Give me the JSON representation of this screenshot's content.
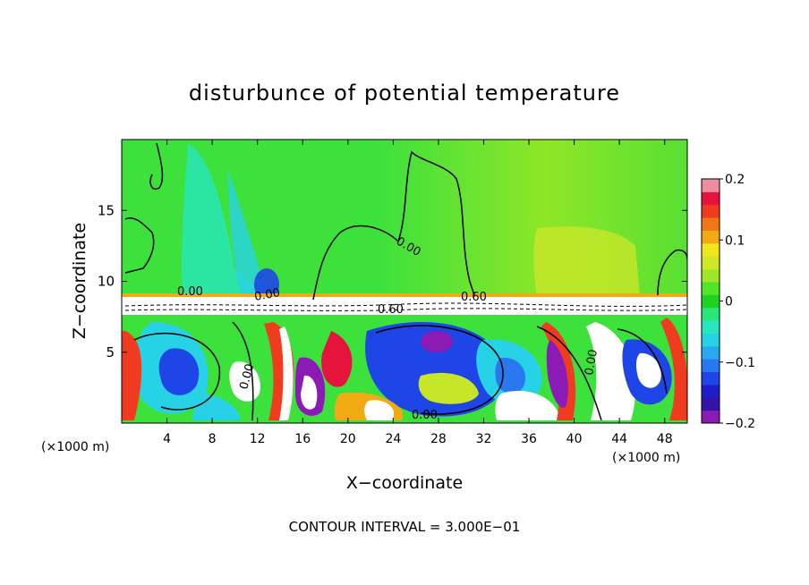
{
  "chart_data": {
    "type": "heatmap",
    "title": "disturbunce of potential temperature",
    "xlabel": "X−coordinate",
    "ylabel": "Z−coordinate",
    "x_unit_label": "(×1000 m)",
    "x_unit_label_right": "(×1000 m)",
    "xlim": [
      0,
      50
    ],
    "ylim": [
      0,
      20
    ],
    "x_ticks": [
      4,
      8,
      12,
      16,
      20,
      24,
      28,
      32,
      36,
      40,
      44,
      48
    ],
    "y_ticks": [
      5,
      10,
      15
    ],
    "colorbar": {
      "range": [
        -0.2,
        0.2
      ],
      "tick_values": [
        0.2,
        0.1,
        0,
        -0.1,
        -0.2
      ],
      "tick_labels": [
        "0.2",
        "0.1",
        "0",
        "−0.1",
        "−0.2"
      ],
      "colors": [
        "#8c1ab4",
        "#3414a8",
        "#1e1ec8",
        "#1e46e6",
        "#2a78f0",
        "#28a8f0",
        "#28d2e6",
        "#28e6be",
        "#28e678",
        "#1ed21e",
        "#50e628",
        "#a0e628",
        "#d2e628",
        "#f0e61e",
        "#f0aa14",
        "#f07814",
        "#f03c1e",
        "#e6143c",
        "#f08ca0"
      ]
    },
    "contour_labels": [
      "0.00",
      "0.00",
      "0.00",
      "0.60",
      "0.60",
      "0.00",
      "0.00",
      "0.00"
    ],
    "annotation": "CONTOUR INTERVAL = 3.000E−01",
    "grid": false
  }
}
